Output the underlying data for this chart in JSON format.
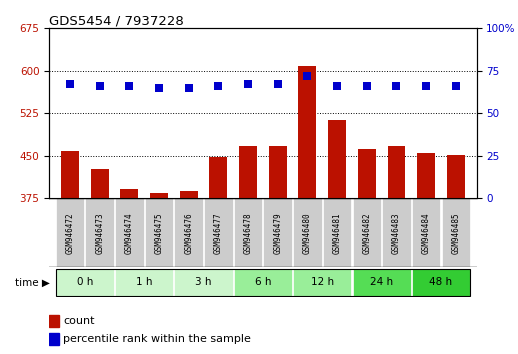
{
  "title": "GDS5454 / 7937228",
  "samples": [
    "GSM946472",
    "GSM946473",
    "GSM946474",
    "GSM946475",
    "GSM946476",
    "GSM946477",
    "GSM946478",
    "GSM946479",
    "GSM946480",
    "GSM946481",
    "GSM946482",
    "GSM946483",
    "GSM946484",
    "GSM946485"
  ],
  "counts": [
    458,
    427,
    392,
    385,
    388,
    447,
    468,
    468,
    608,
    513,
    462,
    468,
    455,
    452
  ],
  "percentile_ranks": [
    67,
    66,
    66,
    65,
    65,
    66,
    67,
    67,
    72,
    66,
    66,
    66,
    66,
    66
  ],
  "time_groups": [
    {
      "label": "0 h",
      "indices": [
        0,
        1
      ]
    },
    {
      "label": "1 h",
      "indices": [
        2,
        3
      ]
    },
    {
      "label": "3 h",
      "indices": [
        4,
        5
      ]
    },
    {
      "label": "6 h",
      "indices": [
        6,
        7
      ]
    },
    {
      "label": "12 h",
      "indices": [
        8,
        9
      ]
    },
    {
      "label": "24 h",
      "indices": [
        10,
        11
      ]
    },
    {
      "label": "48 h",
      "indices": [
        12,
        13
      ]
    }
  ],
  "group_colors": {
    "0 h": "#ccf5cc",
    "1 h": "#ccf5cc",
    "3 h": "#ccf5cc",
    "6 h": "#99ee99",
    "12 h": "#99ee99",
    "24 h": "#55dd55",
    "48 h": "#33cc33"
  },
  "ylim_left": [
    375,
    675
  ],
  "ylim_right": [
    0,
    100
  ],
  "yticks_left": [
    375,
    450,
    525,
    600,
    675
  ],
  "yticks_right": [
    0,
    25,
    50,
    75,
    100
  ],
  "bar_color": "#bb1100",
  "dot_color": "#0000cc",
  "grid_color": "#000000",
  "background_color": "#ffffff",
  "sample_bg_color": "#cccccc",
  "legend_count": "count",
  "legend_pct": "percentile rank within the sample"
}
